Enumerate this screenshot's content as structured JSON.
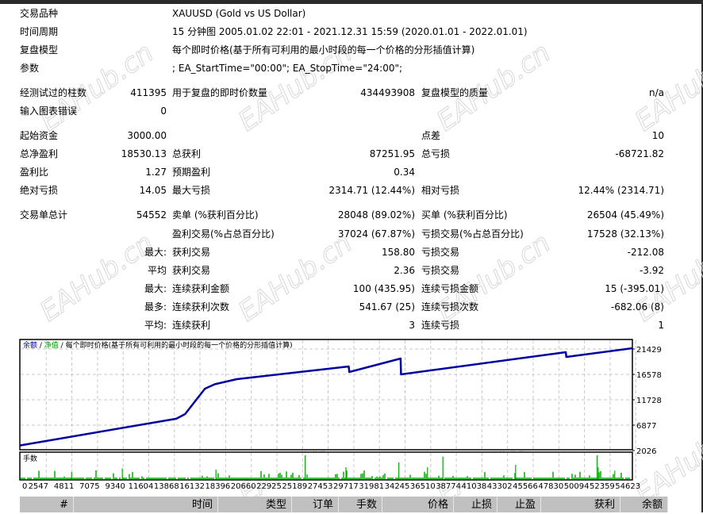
{
  "watermark": "EAHub.cn",
  "header": [
    {
      "label": "交易品种",
      "value": "XAUUSD (Gold vs US Dollar)"
    },
    {
      "label": "时间周期",
      "value": "15 分钟图 2005.01.02 22:01 - 2021.12.31 15:59 (2020.01.01 - 2022.01.01)"
    },
    {
      "label": "复盘模型",
      "value": "每个即时价格(基于所有可利用的最小时段的每一个价格的分形插值计算)"
    },
    {
      "label": "参数",
      "value": "; EA_StartTime=\"00:00\"; EA_StopTime=\"24:00\";"
    }
  ],
  "stats": [
    [
      "经测试过的柱数",
      "411395",
      "用于复盘的即时价数量",
      "434493908",
      "复盘模型的质量",
      "n/a"
    ],
    [
      "输入图表错误",
      "0",
      "",
      "",
      "",
      ""
    ],
    [
      "起始资金",
      "3000.00",
      "",
      "",
      "点差",
      "10"
    ],
    [
      "总净盈利",
      "18530.13",
      "总获利",
      "87251.95",
      "总亏损",
      "-68721.82"
    ],
    [
      "盈利比",
      "1.27",
      "预期盈利",
      "0.34",
      "",
      ""
    ],
    [
      "绝对亏损",
      "14.05",
      "最大亏损",
      "2314.71 (12.44%)",
      "相对亏损",
      "12.44% (2314.71)"
    ],
    [
      "交易单总计",
      "54552",
      "卖单 (%获利百分比)",
      "28048 (89.02%)",
      "买单 (%获利百分比)",
      "26504 (45.49%)"
    ],
    [
      "",
      "",
      "盈利交易(%占总百分比)",
      "37024 (67.87%)",
      "亏损交易(%占总百分比)",
      "17528 (32.13%)"
    ],
    [
      "",
      "最大:",
      "获利交易",
      "158.80",
      "亏损交易",
      "-212.08"
    ],
    [
      "",
      "平均",
      "获利交易",
      "2.36",
      "亏损交易",
      "-3.92"
    ],
    [
      "",
      "最大:",
      "连续获利金额",
      "100 (435.95)",
      "连续亏损金额",
      "15 (-395.01)"
    ],
    [
      "",
      "最多:",
      "连续获利次数",
      "541.67 (25)",
      "连续亏损次数",
      "-682.06 (8)"
    ],
    [
      "",
      "平均:",
      "连续获利",
      "3",
      "连续亏损",
      "1"
    ]
  ],
  "chart_data": {
    "type": "line",
    "legend": {
      "balance": "余额",
      "sep1": " / ",
      "equity": "净值",
      "sep2": " / ",
      "model": "每个即时价格(基于所有可利用的最小时段的每一个价格的分形插值计算)"
    },
    "volume_label": "手数",
    "colors": {
      "balance": "#0000a0",
      "equity": "#00a000",
      "volume": "#00b000",
      "grid": "#c8c8c8"
    },
    "yticks": [
      "21429",
      "16578",
      "11728",
      "6877",
      "2026"
    ],
    "ylim": [
      2026,
      21429
    ],
    "xticks": [
      "0",
      "2547",
      "4811",
      "7075",
      "9340",
      "11604",
      "13868",
      "16132",
      "18396",
      "20660",
      "22925",
      "25189",
      "27453",
      "29717",
      "31981",
      "34245",
      "36510",
      "38774",
      "41038",
      "43302",
      "45566",
      "47830",
      "50094",
      "52359",
      "54623"
    ],
    "xlim": [
      0,
      55600
    ],
    "grid": true,
    "series": [
      {
        "name": "余额",
        "points": [
          [
            0,
            3000
          ],
          [
            14200,
            8100
          ],
          [
            15000,
            9000
          ],
          [
            16800,
            13850
          ],
          [
            17700,
            14700
          ],
          [
            19700,
            15670
          ],
          [
            29850,
            18100
          ],
          [
            29900,
            17030
          ],
          [
            34560,
            19610
          ],
          [
            34600,
            16580
          ],
          [
            49560,
            20820
          ],
          [
            49600,
            19910
          ],
          [
            55600,
            21580
          ]
        ]
      }
    ],
    "volume_spikes": [
      [
        4700,
        0.3
      ],
      [
        9300,
        0.45
      ],
      [
        17800,
        0.4
      ],
      [
        25900,
        1.0
      ],
      [
        29600,
        0.5
      ],
      [
        34400,
        0.7
      ],
      [
        38400,
        0.95
      ],
      [
        37000,
        0.5
      ],
      [
        45000,
        0.6
      ],
      [
        52400,
        1.0
      ],
      [
        52500,
        0.5
      ],
      [
        54000,
        0.35
      ]
    ]
  },
  "table_header": [
    "#",
    "时间",
    "类型",
    "订单",
    "手数",
    "价格",
    "止损",
    "止盈",
    "获利",
    "余额"
  ]
}
